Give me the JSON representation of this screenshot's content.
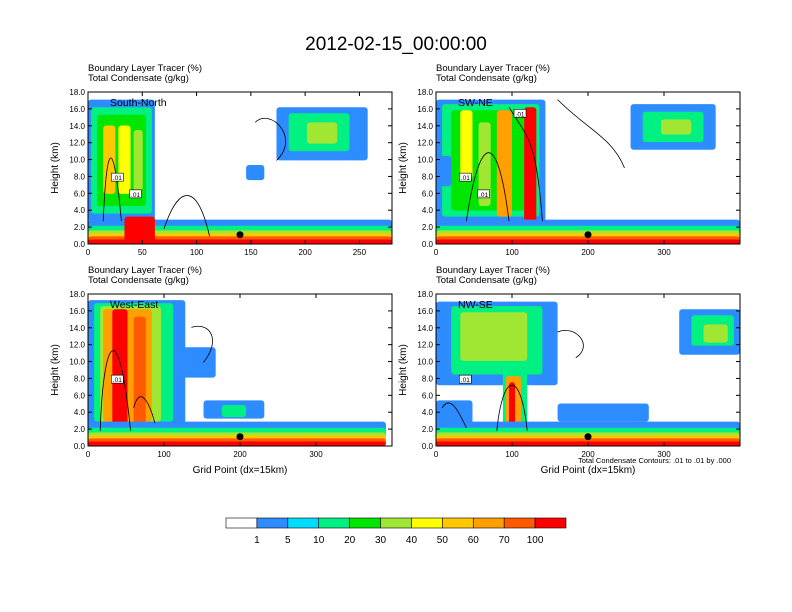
{
  "title": "2012-02-15_00:00:00",
  "panel_subtitle_line1": "Boundary Layer Tracer   (%)",
  "panel_subtitle_line2": "Total Condensate   (g/kg)",
  "contour_note": "Total Condensate Contours: .01 to .01 by .000",
  "colors": [
    "#ffffff",
    "#2d8cff",
    "#00dcff",
    "#00f082",
    "#00e600",
    "#a0e632",
    "#ffff00",
    "#ffc800",
    "#ffa000",
    "#ff5a00",
    "#ff0000"
  ],
  "chart_data": [
    {
      "type": "heatmap",
      "label": "South-North",
      "subtitle": [
        "Boundary Layer Tracer   (%)",
        "Total Condensate   (g/kg)"
      ],
      "xlabel": "",
      "ylabel": "Height (km)",
      "xlim": [
        0,
        280
      ],
      "ylim": [
        0,
        18
      ],
      "x_ticks": [
        0,
        50,
        100,
        150,
        200,
        250
      ],
      "y_ticks": [
        "0.0",
        "2.0",
        "4.0",
        "6.0",
        "8.0",
        "10.0",
        "12.0",
        "14.0",
        "16.0",
        "18.0"
      ],
      "contour_labels": [
        ".01",
        ".01"
      ],
      "marker_x": 140,
      "marker_y": 1.1
    },
    {
      "type": "heatmap",
      "label": "SW-NE",
      "subtitle": [
        "Boundary Layer Tracer   (%)",
        "Total Condensate   (g/kg)"
      ],
      "xlabel": "",
      "ylabel": "Height (km)",
      "xlim": [
        0,
        400
      ],
      "ylim": [
        0,
        18
      ],
      "x_ticks": [
        0,
        100,
        200,
        300
      ],
      "y_ticks": [
        "0.0",
        "2.0",
        "4.0",
        "6.0",
        "8.0",
        "10.0",
        "12.0",
        "14.0",
        "16.0",
        "18.0"
      ],
      "contour_labels": [
        ".01",
        ".01",
        ".01"
      ],
      "marker_x": 200,
      "marker_y": 1.1
    },
    {
      "type": "heatmap",
      "label": "West-East",
      "subtitle": [
        "Boundary Layer Tracer   (%)",
        "Total Condensate   (g/kg)"
      ],
      "xlabel": "Grid Point (dx=15km)",
      "ylabel": "Height (km)",
      "xlim": [
        0,
        400
      ],
      "ylim": [
        0,
        18
      ],
      "x_ticks": [
        0,
        100,
        200,
        300
      ],
      "y_ticks": [
        "0.0",
        "2.0",
        "4.0",
        "6.0",
        "8.0",
        "10.0",
        "12.0",
        "14.0",
        "16.0",
        "18.0"
      ],
      "contour_labels": [
        ".01"
      ],
      "marker_x": 200,
      "marker_y": 1.1
    },
    {
      "type": "heatmap",
      "label": "NW-SE",
      "subtitle": [
        "Boundary Layer Tracer   (%)",
        "Total Condensate   (g/kg)"
      ],
      "xlabel": "Grid Point (dx=15km)",
      "ylabel": "Height (km)",
      "xlim": [
        0,
        400
      ],
      "ylim": [
        0,
        18
      ],
      "x_ticks": [
        0,
        100,
        200,
        300
      ],
      "y_ticks": [
        "0.0",
        "2.0",
        "4.0",
        "6.0",
        "8.0",
        "10.0",
        "12.0",
        "14.0",
        "16.0",
        "18.0"
      ],
      "contour_labels": [
        ".01"
      ],
      "marker_x": 200,
      "marker_y": 1.1
    }
  ],
  "colorbar": {
    "labels": [
      "1",
      "5",
      "10",
      "20",
      "30",
      "40",
      "50",
      "60",
      "70",
      "100"
    ],
    "colors": [
      "#ffffff",
      "#2d8cff",
      "#00dcff",
      "#00f082",
      "#00e600",
      "#a0e632",
      "#ffff00",
      "#ffc800",
      "#ffa000",
      "#ff5a00",
      "#ff0000"
    ]
  }
}
